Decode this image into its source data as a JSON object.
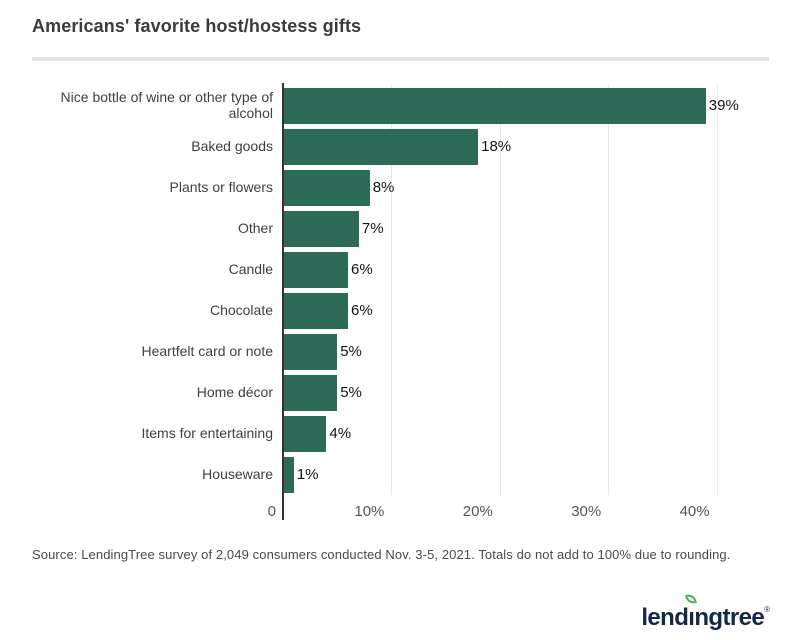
{
  "title": "Americans' favorite host/hostess gifts",
  "chart_data": {
    "type": "bar",
    "orientation": "horizontal",
    "title": "Americans' favorite host/hostess gifts",
    "categories": [
      "Nice bottle of wine or other type of alcohol",
      "Baked goods",
      "Plants or flowers",
      "Other",
      "Candle",
      "Chocolate",
      "Heartfelt card or note",
      "Home décor",
      "Items for entertaining",
      "Houseware"
    ],
    "values": [
      39,
      18,
      8,
      7,
      6,
      6,
      5,
      5,
      4,
      1
    ],
    "value_labels": [
      "39%",
      "18%",
      "8%",
      "7%",
      "6%",
      "6%",
      "5%",
      "5%",
      "4%",
      "1%"
    ],
    "xlabel": "",
    "ylabel": "",
    "xlim": [
      0,
      44
    ],
    "x_ticks": [
      {
        "value": 0,
        "label": "0"
      },
      {
        "value": 10,
        "label": "10%"
      },
      {
        "value": 20,
        "label": "20%"
      },
      {
        "value": 30,
        "label": "30%"
      },
      {
        "value": 40,
        "label": "40%"
      }
    ],
    "grid": true,
    "legend": "none"
  },
  "colors": {
    "bar": "#2d6a58",
    "axis": "#333333",
    "gridline": "#e9e9e9",
    "title_text": "#3b3b3b",
    "category_text": "#3f3f3f",
    "value_text": "#141414",
    "tick_text": "#555555",
    "source_text": "#4a4a4a",
    "divider": "#e3e3e3",
    "logo_navy": "#15284b",
    "logo_leaf_green": "#3cb54b"
  },
  "source_note": "Source: LendingTree survey of 2,049 consumers conducted Nov. 3-5, 2021. Totals do not add to 100% due to rounding.",
  "logo": {
    "name": "lendingtree",
    "text_pre": "lend",
    "text_i": "ı",
    "text_post": "ngtree",
    "registered": "®"
  }
}
